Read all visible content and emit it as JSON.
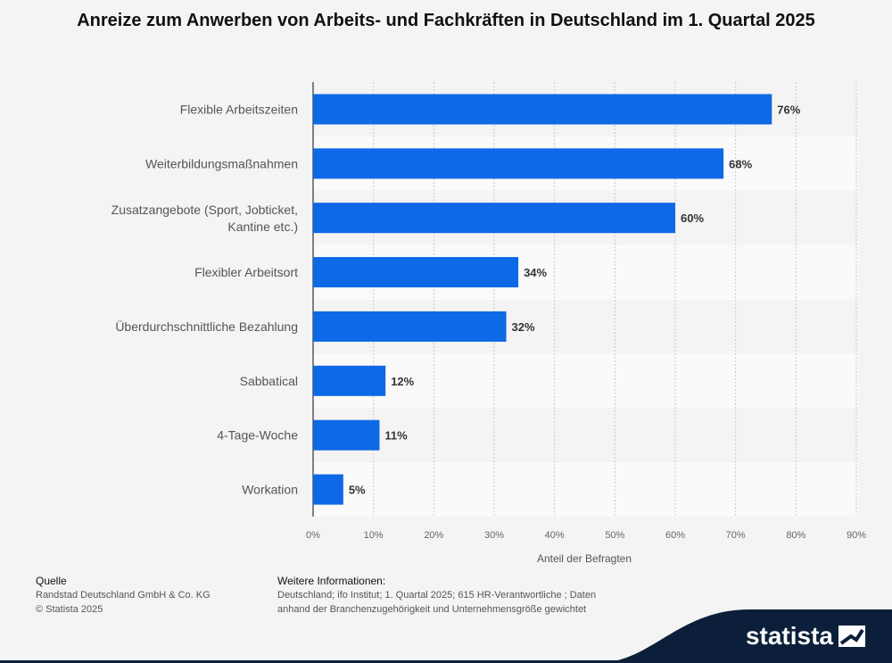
{
  "chart_data": {
    "type": "bar",
    "orientation": "horizontal",
    "title": "Anreize zum Anwerben von Arbeits- und Fachkräften in Deutschland im 1. Quartal 2025",
    "categories": [
      "Flexible Arbeitszeiten",
      "Weiterbildungsmaßnahmen",
      "Zusatzangebote (Sport, Jobticket, Kantine etc.)",
      "Flexibler Arbeitsort",
      "Überdurchschnittliche Bezahlung",
      "Sabbatical",
      "4-Tage-Woche",
      "Workation"
    ],
    "values": [
      76,
      68,
      60,
      34,
      32,
      12,
      11,
      5
    ],
    "value_labels": [
      "76%",
      "68%",
      "60%",
      "34%",
      "32%",
      "12%",
      "11%",
      "5%"
    ],
    "xlim": [
      0,
      90
    ],
    "ticks": [
      0,
      10,
      20,
      30,
      40,
      50,
      60,
      70,
      80,
      90
    ],
    "tick_labels": [
      "0%",
      "10%",
      "20%",
      "30%",
      "40%",
      "50%",
      "60%",
      "70%",
      "80%",
      "90%"
    ],
    "xlabel": "Anteil der Befragten",
    "bar_color": "#0d69e5"
  },
  "footer": {
    "source_heading": "Quelle",
    "source_lines": [
      "Randstad Deutschland GmbH & Co. KG",
      "© Statista 2025"
    ],
    "info_heading": "Weitere Informationen:",
    "info_lines": [
      "Deutschland; ifo Institut; 1. Quartal 2025; 615 HR-Verantwortliche ; Daten",
      "anhand der Branchenzugehörigkeit und Unternehmensgröße gewichtet"
    ]
  },
  "branding": {
    "logo_text": "statista",
    "logo_color": "#0b1f3a"
  }
}
